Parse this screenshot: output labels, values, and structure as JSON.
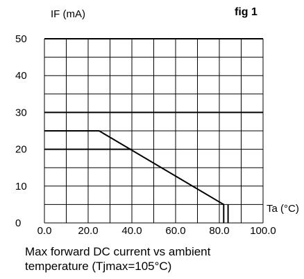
{
  "chart_data": {
    "type": "line",
    "figure_label": "fig 1",
    "ylabel": "IF (mA)",
    "xlabel": "Ta (°C)",
    "xlim": [
      0,
      100
    ],
    "ylim": [
      0,
      50
    ],
    "x_ticks": [
      "0.0",
      "20.0",
      "40.0",
      "60.0",
      "80.0",
      "100.0"
    ],
    "y_ticks": [
      "0",
      "10",
      "20",
      "30",
      "40",
      "50"
    ],
    "grid": true,
    "series": [
      {
        "x": [
          0,
          25,
          82,
          82
        ],
        "y": [
          25,
          25,
          5,
          0
        ]
      },
      {
        "x": [
          0,
          40
        ],
        "y": [
          20,
          20
        ]
      },
      {
        "x": [
          0,
          100
        ],
        "y": [
          30,
          30
        ]
      },
      {
        "x": [
          0,
          100
        ],
        "y": [
          50,
          50
        ]
      },
      {
        "x": [
          84,
          84
        ],
        "y": [
          0,
          5
        ]
      }
    ]
  },
  "caption": {
    "line1": "Max forward DC current vs ambient",
    "line2": "temperature (Tjmax=105°C)"
  }
}
